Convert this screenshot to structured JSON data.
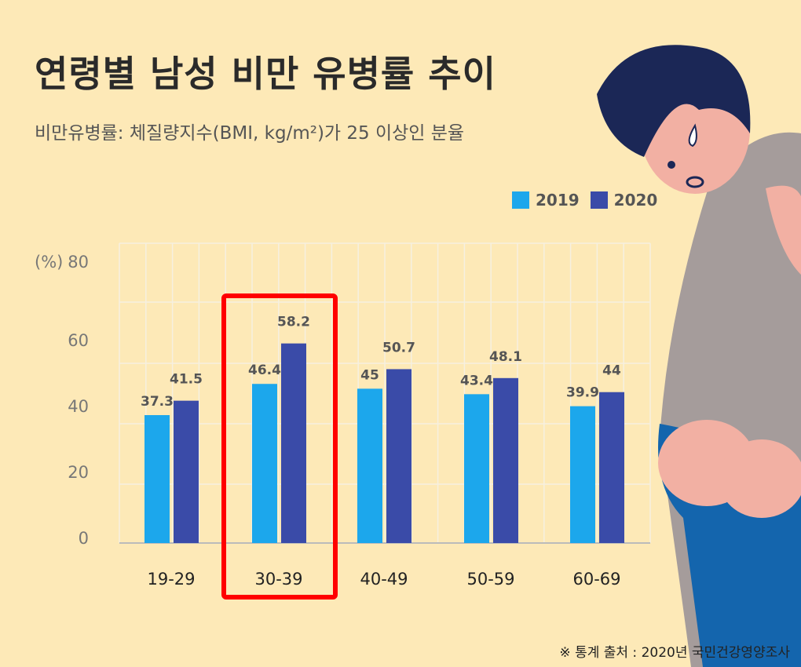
{
  "title": "연령별 남성 비만 유병률 추이",
  "subtitle": "비만유병률: 체질량지수(BMI, kg/m²)가 25 이상인 분율",
  "footer": "※ 통계 출처 : 2020년 국민건강영양조사",
  "highlight_category": "30-39",
  "colors": {
    "background": "#fde9b7",
    "s2019": "#1ca7ec",
    "s2020": "#3a4ba8",
    "highlight": "#ff0000"
  },
  "chart_data": {
    "type": "bar",
    "categories": [
      "19-29",
      "30-39",
      "40-49",
      "50-59",
      "60-69"
    ],
    "series": [
      {
        "name": "2019",
        "values": [
          37.3,
          46.4,
          45,
          43.4,
          39.9
        ]
      },
      {
        "name": "2020",
        "values": [
          41.5,
          58.2,
          50.7,
          48.1,
          44
        ]
      }
    ],
    "yticks": [
      "0",
      "20",
      "40",
      "60",
      "80"
    ],
    "yunit": "(%)",
    "ylim": [
      0,
      80
    ],
    "grid": true,
    "legend": "top-right"
  }
}
